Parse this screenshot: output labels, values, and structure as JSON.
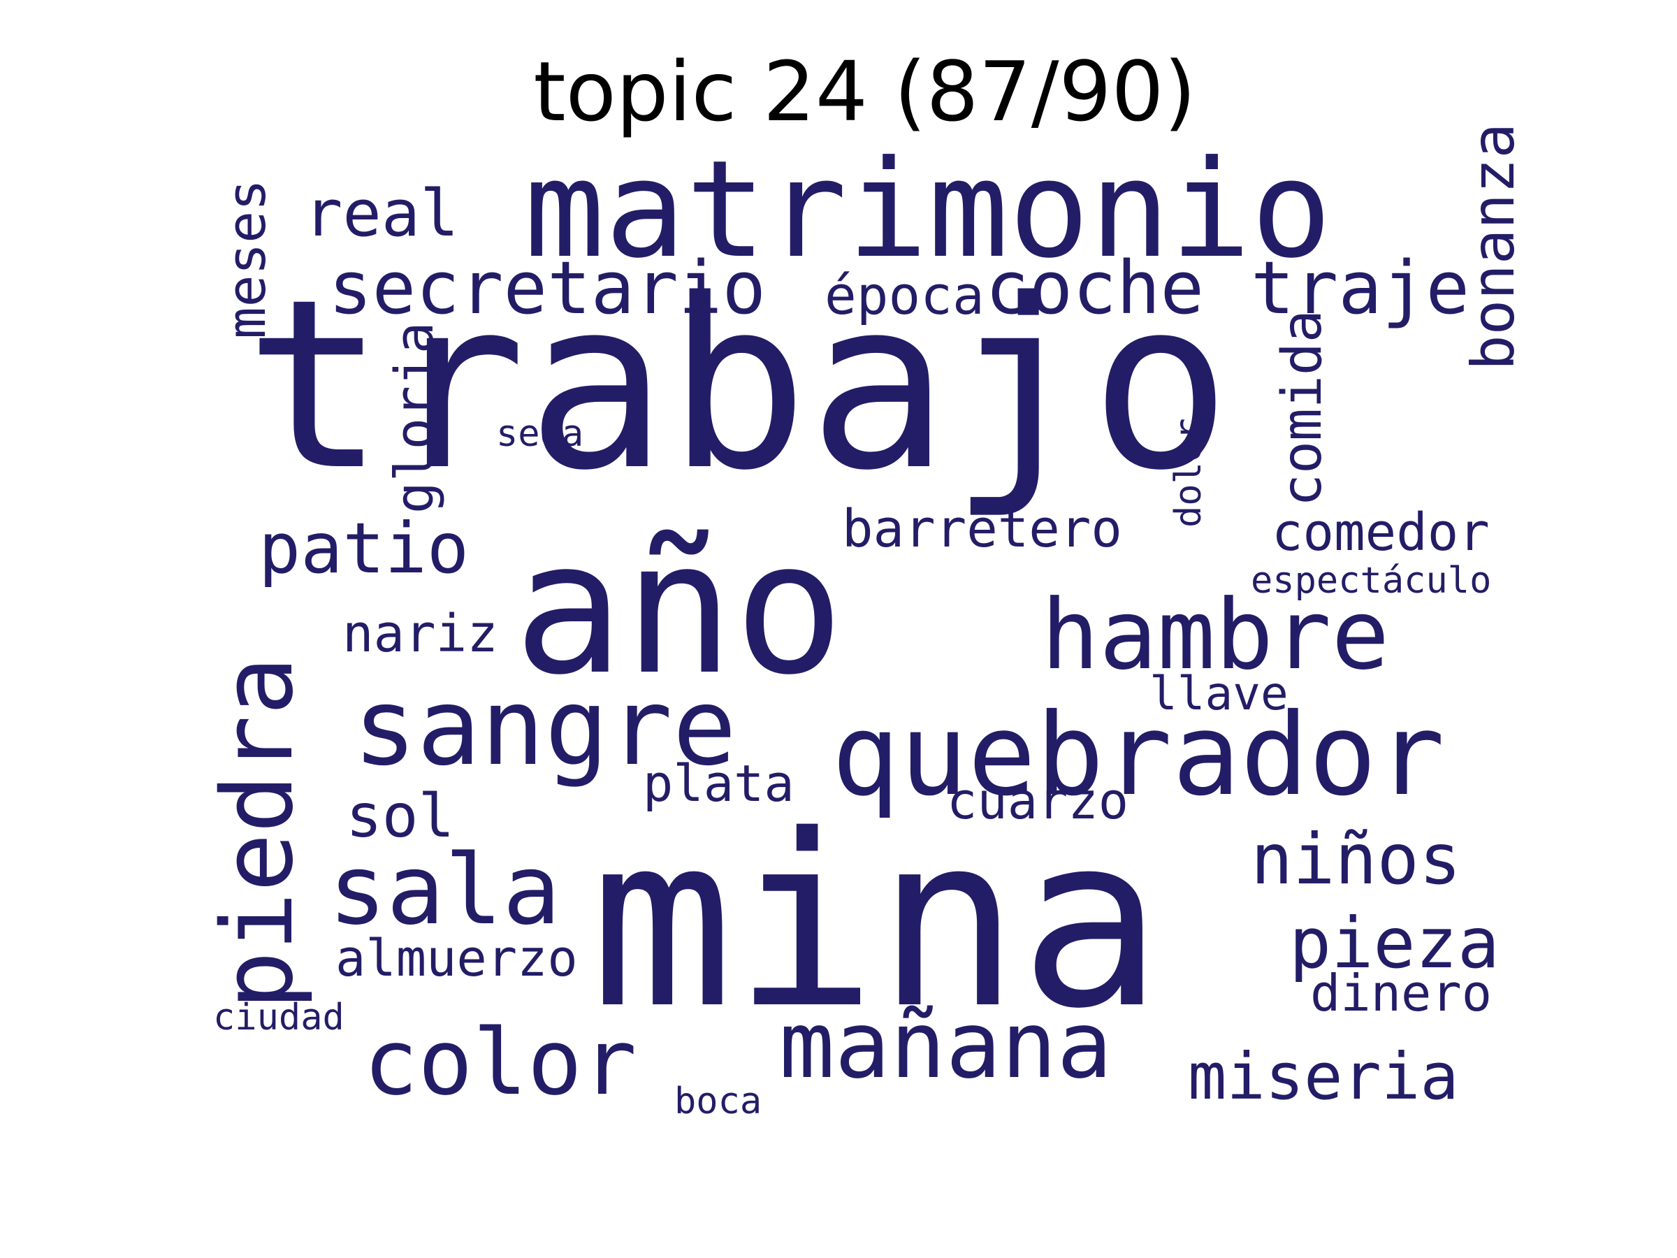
{
  "title": "topic 24 (87/90)",
  "word_color": "#231d67",
  "words": [
    {
      "text": "trabajo"
    },
    {
      "text": "mina"
    },
    {
      "text": "año"
    },
    {
      "text": "matrimonio"
    },
    {
      "text": "quebrador"
    },
    {
      "text": "sangre"
    },
    {
      "text": "hambre"
    },
    {
      "text": "piedra"
    },
    {
      "text": "sala"
    },
    {
      "text": "mañana"
    },
    {
      "text": "color"
    },
    {
      "text": "secretario"
    },
    {
      "text": "coche"
    },
    {
      "text": "traje"
    },
    {
      "text": "patio"
    },
    {
      "text": "niños"
    },
    {
      "text": "pieza"
    },
    {
      "text": "miseria"
    },
    {
      "text": "real"
    },
    {
      "text": "bonanza"
    },
    {
      "text": "comida"
    },
    {
      "text": "meses"
    },
    {
      "text": "época"
    },
    {
      "text": "gloria"
    },
    {
      "text": "barretero"
    },
    {
      "text": "comedor"
    },
    {
      "text": "nariz"
    },
    {
      "text": "sol"
    },
    {
      "text": "plata"
    },
    {
      "text": "cuarzo"
    },
    {
      "text": "almuerzo"
    },
    {
      "text": "dinero"
    },
    {
      "text": "llave"
    },
    {
      "text": "dolor"
    },
    {
      "text": "seda"
    },
    {
      "text": "espectáculo"
    },
    {
      "text": "ciudad"
    },
    {
      "text": "boca"
    }
  ]
}
